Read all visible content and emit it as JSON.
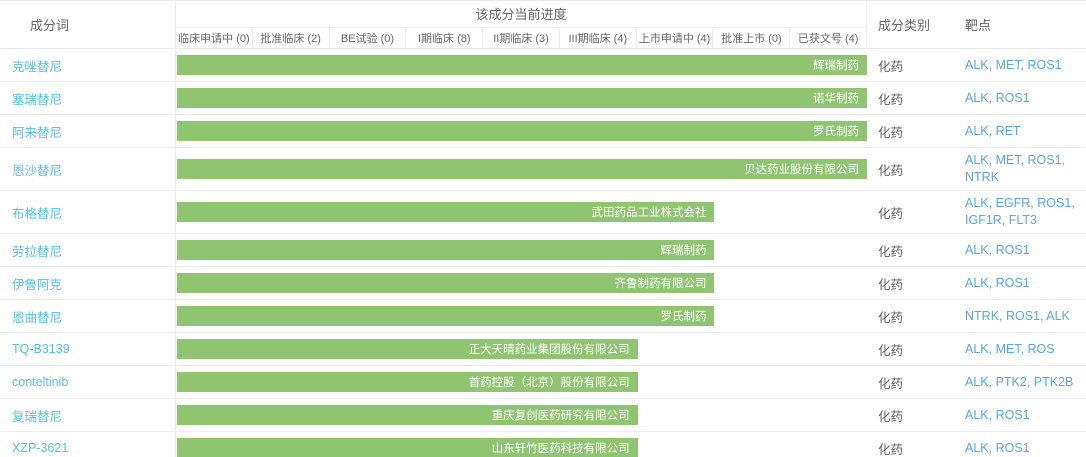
{
  "table": {
    "columns": {
      "ingredient": "成分词",
      "progress": "该成分当前进度",
      "category": "成分类别",
      "target": "靶点"
    },
    "stages": [
      "临床申请中 (0)",
      "批准临床 (2)",
      "BE试验 (0)",
      "I期临床 (8)",
      "II期临床 (3)",
      "III期临床 (4)",
      "上市申请中 (4)",
      "批准上市 (0)",
      "已获文号 (4)"
    ],
    "rows": [
      {
        "name": "克唑替尼",
        "company": "辉瑞制药",
        "stage_reached": 9,
        "category": "化药",
        "targets": "ALK, MET, ROS1"
      },
      {
        "name": "塞瑞替尼",
        "company": "诺华制药",
        "stage_reached": 9,
        "category": "化药",
        "targets": "ALK, ROS1"
      },
      {
        "name": "阿来替尼",
        "company": "罗氏制药",
        "stage_reached": 9,
        "category": "化药",
        "targets": "ALK, RET"
      },
      {
        "name": "恩沙替尼",
        "company": "贝达药业股份有限公司",
        "stage_reached": 9,
        "category": "化药",
        "targets": "ALK, MET, ROS1, NTRK"
      },
      {
        "name": "布格替尼",
        "company": "武田药品工业株式会社",
        "stage_reached": 7,
        "category": "化药",
        "targets": "ALK, EGFR, ROS1, IGF1R, FLT3"
      },
      {
        "name": "劳拉替尼",
        "company": "辉瑞制药",
        "stage_reached": 7,
        "category": "化药",
        "targets": "ALK, ROS1"
      },
      {
        "name": "伊鲁阿克",
        "company": "齐鲁制药有限公司",
        "stage_reached": 7,
        "category": "化药",
        "targets": "ALK, ROS1"
      },
      {
        "name": "恩曲替尼",
        "company": "罗氏制药",
        "stage_reached": 7,
        "category": "化药",
        "targets": "NTRK, ROS1, ALK"
      },
      {
        "name": "TQ-B3139",
        "company": "正大天晴药业集团股份有限公司",
        "stage_reached": 6,
        "category": "化药",
        "targets": "ALK, MET, ROS"
      },
      {
        "name": "conteltinib",
        "company": "首药控股（北京）股份有限公司",
        "stage_reached": 6,
        "category": "化药",
        "targets": "ALK, PTK2, PTK2B"
      },
      {
        "name": "复瑞替尼",
        "company": "重庆复创医药研究有限公司",
        "stage_reached": 6,
        "category": "化药",
        "targets": "ALK, ROS1"
      },
      {
        "name": "XZP-3621",
        "company": "山东轩竹医药科技有限公司",
        "stage_reached": 6,
        "category": "化药",
        "targets": "ALK, ROS1"
      }
    ]
  },
  "colors": {
    "bar_green": "#8fc470",
    "drug_link_blue": "#52c2e3",
    "target_link_blue": "#57a7e3",
    "header_text": "#666666",
    "border": "#ececec"
  }
}
